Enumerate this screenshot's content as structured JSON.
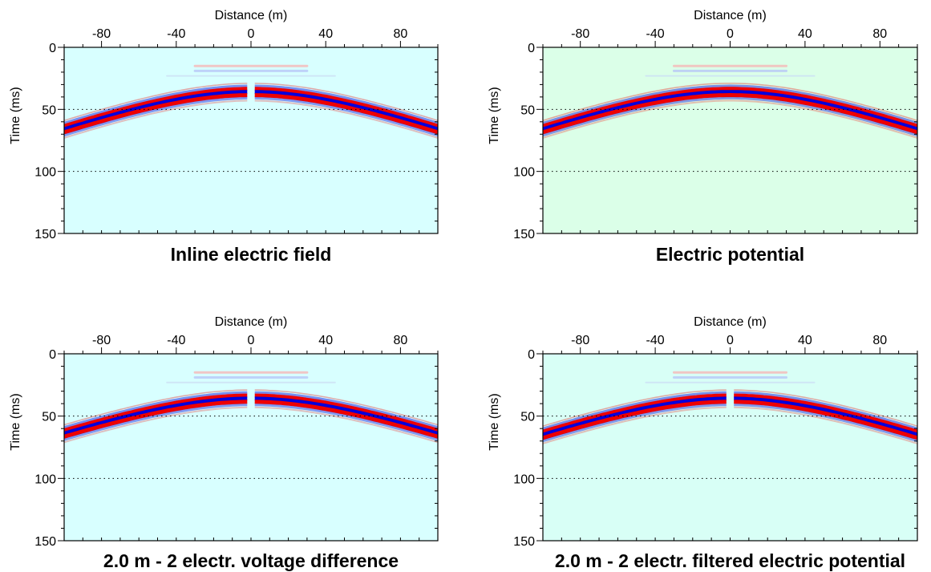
{
  "chart_data": [
    {
      "type": "heatmap",
      "title": "Inline electric field",
      "xlabel": "Distance (m)",
      "ylabel": "Time (ms)",
      "xlim": [
        -100,
        100
      ],
      "ylim": [
        0,
        150
      ],
      "x_ticks": [
        -80,
        -40,
        0,
        40,
        80
      ],
      "y_ticks": [
        0,
        50,
        100,
        150
      ],
      "grid": "dotted horizontal lines at 50 and 100 ms",
      "background_color": "#d8ffff",
      "apex_time_ms": 35,
      "edge_time_ms": 65,
      "wavelet_cycles": 3,
      "near_offset_gap": true,
      "early_event_ms": 15
    },
    {
      "type": "heatmap",
      "title": "Electric potential",
      "xlabel": "Distance (m)",
      "ylabel": "Time (ms)",
      "xlim": [
        -100,
        100
      ],
      "ylim": [
        0,
        150
      ],
      "x_ticks": [
        -80,
        -40,
        0,
        40,
        80
      ],
      "y_ticks": [
        0,
        50,
        100,
        150
      ],
      "grid": "dotted horizontal lines at 50 and 100 ms",
      "background_color": "#dbffe8",
      "apex_time_ms": 35,
      "edge_time_ms": 65,
      "wavelet_cycles": 3,
      "near_offset_gap": false,
      "early_event_ms": 15
    },
    {
      "type": "heatmap",
      "title": "2.0 m - 2 electr. voltage difference",
      "xlabel": "Distance (m)",
      "ylabel": "Time (ms)",
      "xlim": [
        -100,
        100
      ],
      "ylim": [
        0,
        150
      ],
      "x_ticks": [
        -80,
        -40,
        0,
        40,
        80
      ],
      "y_ticks": [
        0,
        50,
        100,
        150
      ],
      "grid": "dotted horizontal lines at 50 and 100 ms",
      "background_color": "#d8ffff",
      "apex_time_ms": 35,
      "edge_time_ms": 63,
      "wavelet_cycles": 3,
      "near_offset_gap": true,
      "early_event_ms": 15
    },
    {
      "type": "heatmap",
      "title": "2.0 m - 2 electr. filtered electric potential",
      "xlabel": "Distance (m)",
      "ylabel": "Time (ms)",
      "xlim": [
        -100,
        100
      ],
      "ylim": [
        0,
        150
      ],
      "x_ticks": [
        -80,
        -40,
        0,
        40,
        80
      ],
      "y_ticks": [
        0,
        50,
        100,
        150
      ],
      "grid": "dotted horizontal lines at 50 and 100 ms",
      "background_color": "#d8fff6",
      "apex_time_ms": 35,
      "edge_time_ms": 64,
      "wavelet_cycles": 3,
      "near_offset_gap": true,
      "early_event_ms": 15
    }
  ],
  "colors": {
    "positive": "#ee0000",
    "negative": "#0000dd",
    "axis": "#000000"
  }
}
